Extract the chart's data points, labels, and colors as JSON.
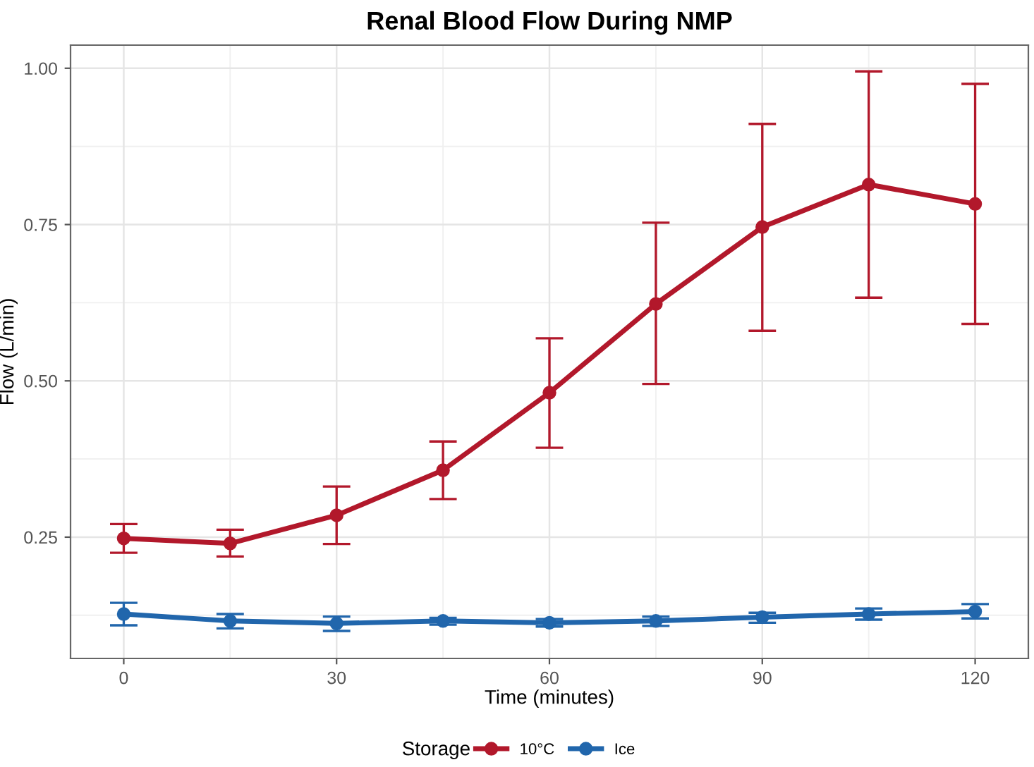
{
  "chart_data": {
    "type": "line",
    "title": "Renal Blood Flow During NMP",
    "xlabel": "Time (minutes)",
    "ylabel": "Flow (L/min)",
    "legend_title": "Storage",
    "x": [
      0,
      15,
      30,
      45,
      60,
      75,
      90,
      105,
      120
    ],
    "series": [
      {
        "name": "10°C",
        "color": "#b2182b",
        "values": [
          0.248,
          0.24,
          0.285,
          0.357,
          0.481,
          0.623,
          0.746,
          0.814,
          0.783
        ],
        "errors": [
          [
            0.225,
            0.271
          ],
          [
            0.219,
            0.262
          ],
          [
            0.239,
            0.331
          ],
          [
            0.311,
            0.403
          ],
          [
            0.393,
            0.568
          ],
          [
            0.495,
            0.753
          ],
          [
            0.58,
            0.911
          ],
          [
            0.633,
            0.995
          ],
          [
            0.591,
            0.975
          ]
        ]
      },
      {
        "name": "Ice",
        "color": "#2166ac",
        "values": [
          0.127,
          0.116,
          0.112,
          0.116,
          0.113,
          0.116,
          0.122,
          0.127,
          0.131
        ],
        "errors": [
          [
            0.109,
            0.145
          ],
          [
            0.104,
            0.127
          ],
          [
            0.1,
            0.123
          ],
          [
            0.11,
            0.121
          ],
          [
            0.107,
            0.119
          ],
          [
            0.108,
            0.123
          ],
          [
            0.113,
            0.129
          ],
          [
            0.118,
            0.136
          ],
          [
            0.12,
            0.143
          ]
        ]
      }
    ],
    "xlim": [
      -7.5,
      127.5
    ],
    "xticks": [
      0,
      30,
      60,
      90,
      120
    ],
    "ylim": [
      0.056,
      1.037
    ],
    "yticks": [
      {
        "value": 0.25,
        "label": "0.25"
      },
      {
        "value": 0.5,
        "label": "0.50"
      },
      {
        "value": 0.75,
        "label": "0.75"
      },
      {
        "value": 1.0,
        "label": "1.00"
      }
    ],
    "grid": true,
    "legend": "bottom",
    "marker": "circle",
    "line_style": "solid"
  }
}
